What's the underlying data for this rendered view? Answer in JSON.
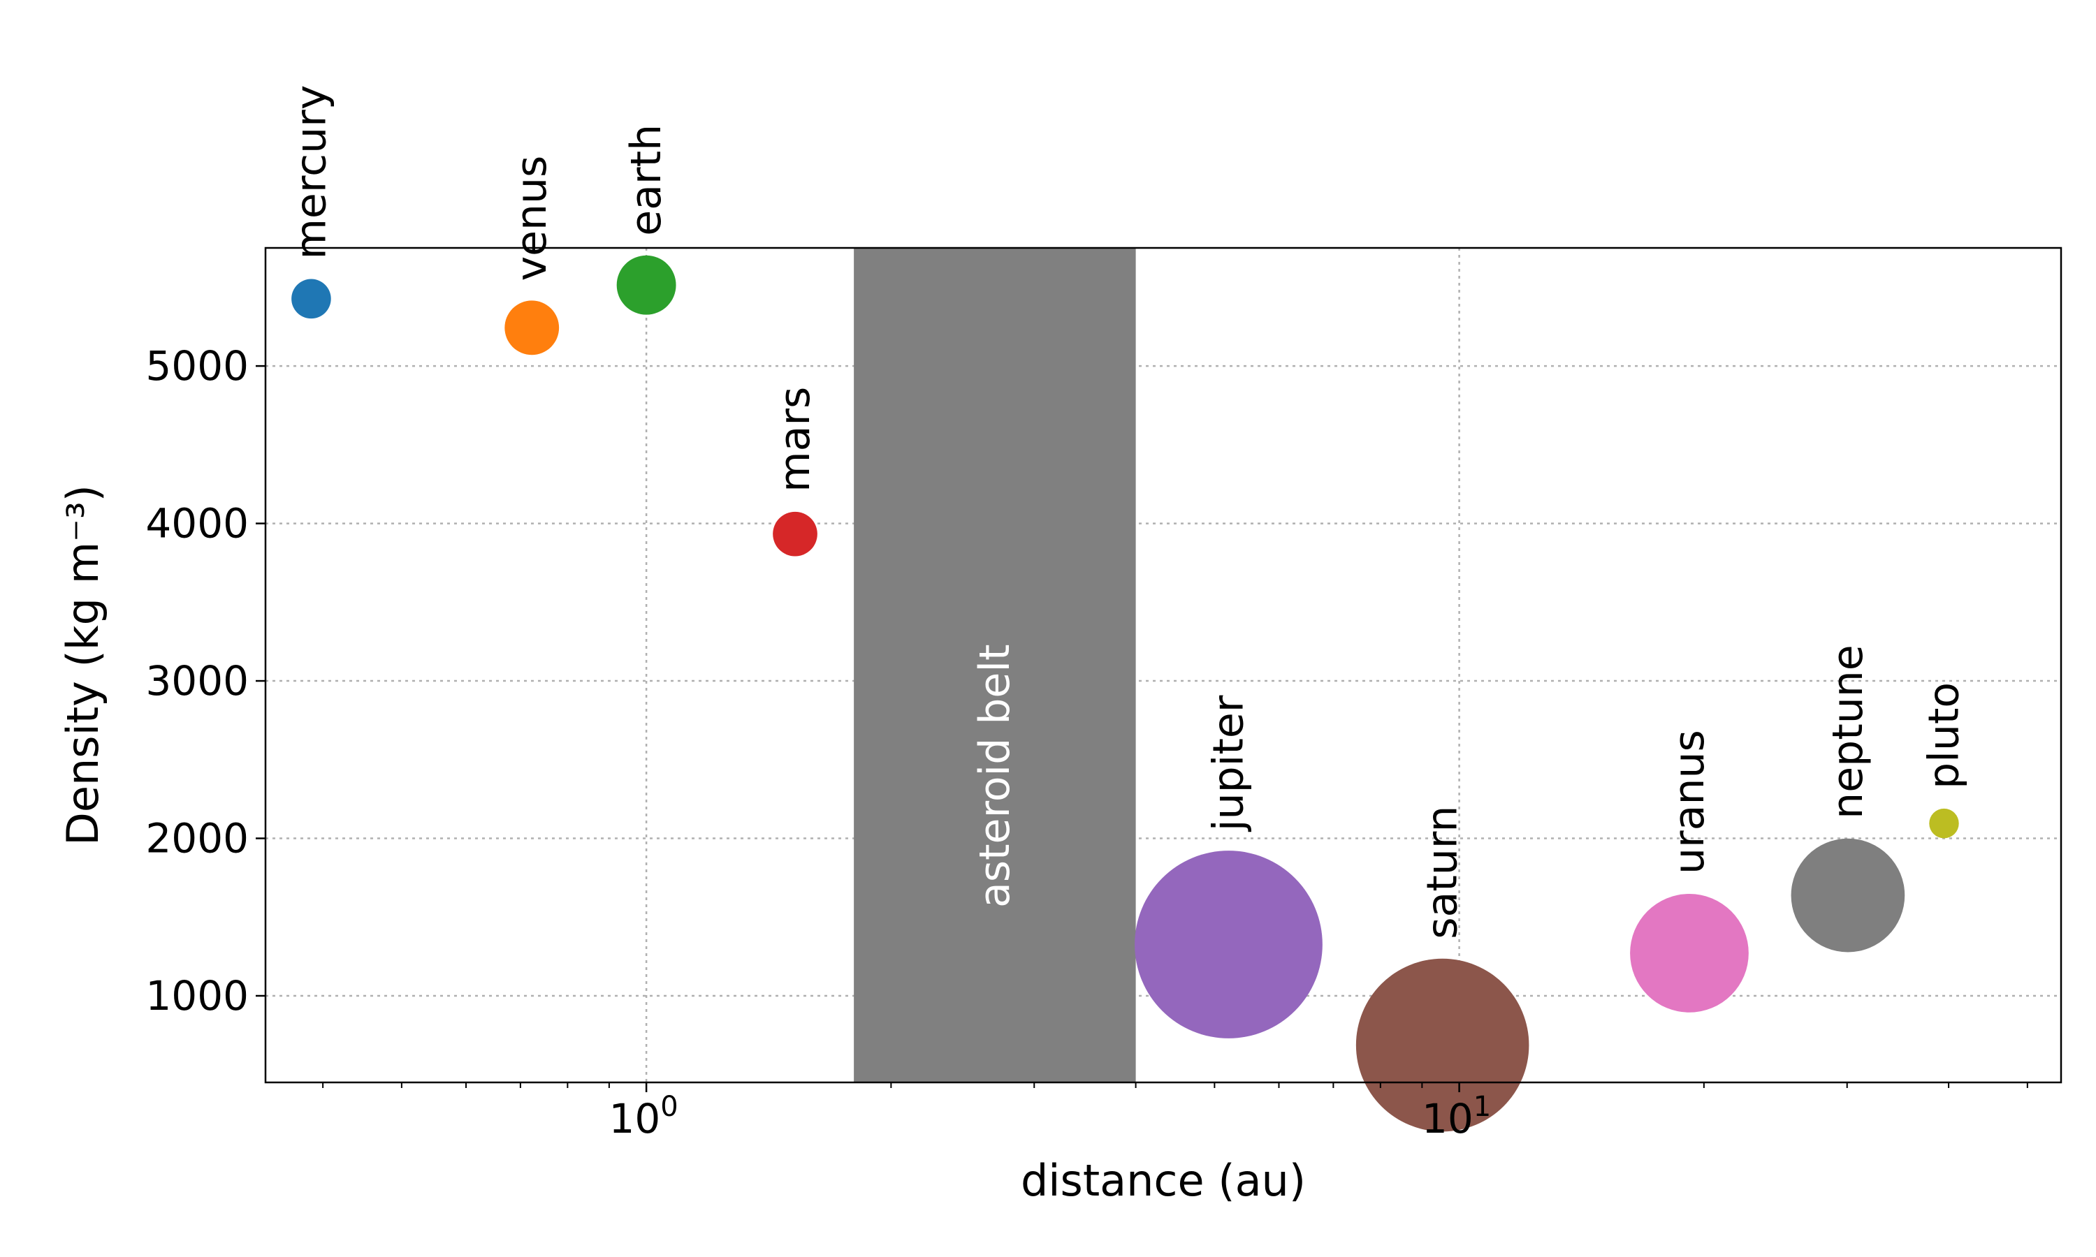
{
  "chart_data": {
    "type": "scatter",
    "xlabel": "distance (au)",
    "ylabel": "Density (kg m⁻³)",
    "xscale": "log",
    "xlim": [
      0.34,
      55
    ],
    "ylim": [
      450,
      5750
    ],
    "grid": true,
    "x_ticks": [
      {
        "value": 1,
        "base": "10",
        "exp": "0"
      },
      {
        "value": 10,
        "base": "10",
        "exp": "1"
      }
    ],
    "y_ticks": [
      1000,
      2000,
      3000,
      4000,
      5000
    ],
    "band": {
      "label": "asteroid belt",
      "x_start": 1.8,
      "x_end": 4.0,
      "color": "#808080"
    },
    "points": [
      {
        "label": "mercury",
        "x": 0.387,
        "y": 5427,
        "size": 8,
        "color": "#1f77b4"
      },
      {
        "label": "venus",
        "x": 0.723,
        "y": 5243,
        "size": 11,
        "color": "#ff7f0e"
      },
      {
        "label": "earth",
        "x": 1.0,
        "y": 5514,
        "size": 12,
        "color": "#2ca02c"
      },
      {
        "label": "mars",
        "x": 1.524,
        "y": 3933,
        "size": 9,
        "color": "#d62728"
      },
      {
        "label": "jupiter",
        "x": 5.203,
        "y": 1326,
        "size": 38,
        "color": "#9467bd"
      },
      {
        "label": "saturn",
        "x": 9.537,
        "y": 687,
        "size": 35,
        "color": "#8c564b"
      },
      {
        "label": "uranus",
        "x": 19.19,
        "y": 1271,
        "size": 24,
        "color": "#e377c2"
      },
      {
        "label": "neptune",
        "x": 30.07,
        "y": 1638,
        "size": 23,
        "color": "#7f7f7f"
      },
      {
        "label": "pluto",
        "x": 39.48,
        "y": 2095,
        "size": 6,
        "color": "#bcbd22"
      }
    ]
  }
}
